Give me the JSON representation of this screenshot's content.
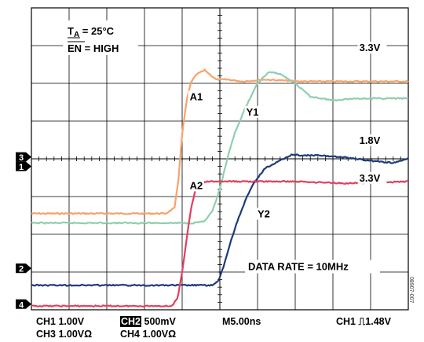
{
  "chart_data": {
    "type": "line",
    "x_unit": "ns",
    "time_per_div": 5,
    "divisions": 10,
    "series": [
      {
        "name": "A1",
        "channel": "CH3",
        "color": "#f6a36c",
        "volts_per_div": 1.0,
        "ground_div": 2.55,
        "x": [
          0,
          10,
          17.8,
          19.0,
          19.5,
          20.0,
          20.6,
          21.2,
          22.0,
          23.0,
          24.5,
          26.0,
          28.0,
          31,
          36,
          42,
          50
        ],
        "y": [
          0,
          0,
          0,
          0.15,
          0.9,
          2.1,
          3.0,
          3.5,
          3.7,
          3.8,
          3.55,
          3.55,
          3.5,
          3.55,
          3.5,
          3.5,
          3.5
        ]
      },
      {
        "name": "Y1",
        "channel": "CH1",
        "color": "#8ecfb0",
        "volts_per_div": 1.0,
        "ground_div": 2.3,
        "x": [
          0,
          10,
          21.5,
          23.0,
          24.0,
          25.0,
          26.0,
          27.0,
          28.5,
          30.0,
          31.5,
          33.0,
          35.0,
          37.0,
          40.0,
          43.0,
          46.0,
          50
        ],
        "y": [
          0,
          0,
          0,
          0.05,
          0.3,
          0.9,
          1.7,
          2.4,
          3.1,
          3.7,
          4.0,
          3.95,
          3.7,
          3.35,
          3.25,
          3.3,
          3.3,
          3.3
        ]
      },
      {
        "name": "Y2",
        "channel": "CH2",
        "color": "#1f3a7a",
        "volts_per_div": 0.5,
        "ground_div": 0.65,
        "x": [
          0,
          15,
          24.0,
          24.8,
          25.5,
          26.5,
          27.5,
          28.5,
          29.5,
          31.0,
          33.0,
          34.5,
          36.0,
          38.0,
          41.0,
          45.0,
          48.0,
          50
        ],
        "y": [
          0,
          0,
          0,
          0.05,
          0.25,
          0.6,
          0.9,
          1.15,
          1.35,
          1.55,
          1.65,
          1.73,
          1.72,
          1.72,
          1.7,
          1.65,
          1.62,
          1.68
        ]
      },
      {
        "name": "A2",
        "channel": "CH4",
        "color": "#e0405f",
        "volts_per_div": 1.0,
        "ground_div": 0.1,
        "x": [
          0,
          10,
          18.6,
          19.4,
          20.0,
          20.6,
          21.2,
          21.8,
          22.5,
          23.5,
          25.0,
          30.0,
          35.0,
          42.0,
          50
        ],
        "y": [
          0,
          0,
          0,
          0.2,
          0.9,
          1.8,
          2.6,
          3.1,
          3.25,
          3.3,
          3.3,
          3.3,
          3.3,
          3.25,
          3.3
        ]
      }
    ],
    "annotations": [
      {
        "text": "A1",
        "x_div": 4.2,
        "y_div": 5.55
      },
      {
        "text": "Y1",
        "x_div": 5.7,
        "y_div": 5.15
      },
      {
        "text": "A2",
        "x_div": 4.2,
        "y_div": 3.2
      },
      {
        "text": "Y2",
        "x_div": 6.0,
        "y_div": 2.45
      }
    ],
    "level_labels": [
      {
        "text": "3.3V",
        "x_div": 8.7,
        "y_div": 6.85
      },
      {
        "text": "1.8V",
        "x_div": 8.7,
        "y_div": 4.4
      },
      {
        "text": "3.3V",
        "x_div": 8.7,
        "y_div": 3.4
      }
    ],
    "channel_markers": [
      {
        "label": "3",
        "y_div": 4.05
      },
      {
        "label": "1",
        "y_div": 3.8
      },
      {
        "label": "2",
        "y_div": 1.1
      },
      {
        "label": "4",
        "y_div": 0.15
      }
    ],
    "conditions": {
      "ta_label": "T",
      "ta_subscript": "A",
      "ta_value": " = 25°C",
      "en_label": "EN",
      "en_value": " = HIGH"
    },
    "data_rate": "DATA RATE = 10MHz"
  },
  "readout": {
    "ch1": "CH1  1.00V",
    "ch2_tag": "CH2",
    "ch2": "500mV",
    "time": "M5.00ns",
    "trigger_prefix": "CH1",
    "trigger_symbol": "⎍",
    "trigger_level": "1.48V",
    "ch3": "CH3  1.00VΩ",
    "ch4": "CH4  1.00VΩ"
  },
  "figure_id": "08907-007"
}
